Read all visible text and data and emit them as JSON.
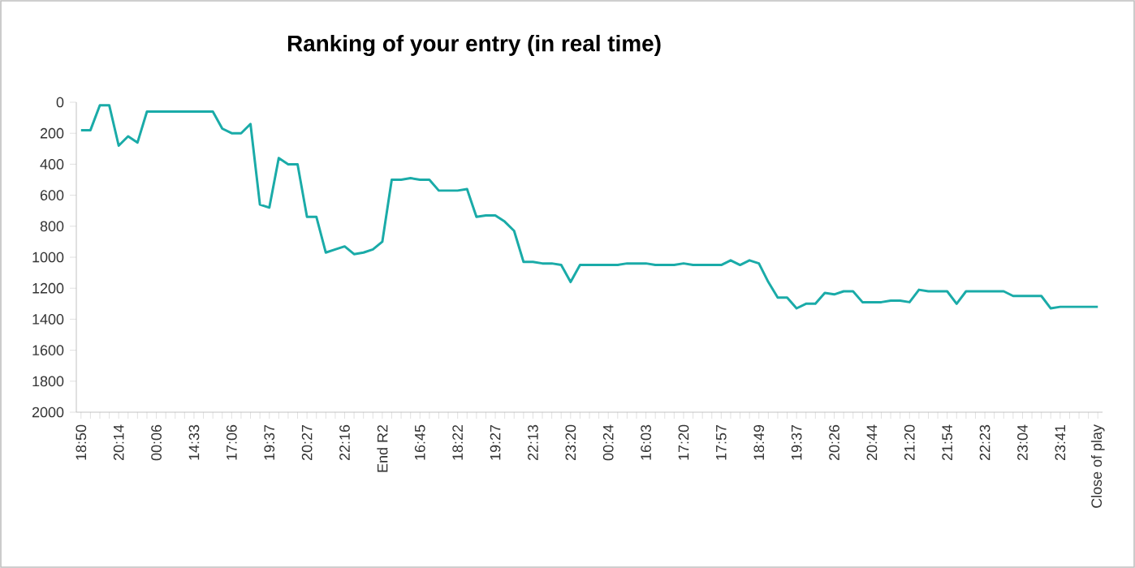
{
  "chart_data": {
    "type": "line",
    "title": "Ranking of your entry (in real time)",
    "categories": [
      "18:50",
      null,
      null,
      null,
      "20:14",
      null,
      null,
      null,
      "00:06",
      null,
      null,
      null,
      "14:33",
      null,
      null,
      null,
      "17:06",
      null,
      null,
      null,
      "19:37",
      null,
      null,
      null,
      "20:27",
      null,
      null,
      null,
      "22:16",
      null,
      null,
      null,
      "End R2",
      null,
      null,
      null,
      "16:45",
      null,
      null,
      null,
      "18:22",
      null,
      null,
      null,
      "19:27",
      null,
      null,
      null,
      "22:13",
      null,
      null,
      null,
      "23:20",
      null,
      null,
      null,
      "00:24",
      null,
      null,
      null,
      "16:03",
      null,
      null,
      null,
      "17:20",
      null,
      null,
      null,
      "17:57",
      null,
      null,
      null,
      "18:49",
      null,
      null,
      null,
      "19:37",
      null,
      null,
      null,
      "20:26",
      null,
      null,
      null,
      "20:44",
      null,
      null,
      null,
      "21:20",
      null,
      null,
      null,
      "21:54",
      null,
      null,
      null,
      "22:23",
      null,
      null,
      null,
      "23:04",
      null,
      null,
      null,
      "23:41",
      null,
      null,
      null,
      "Close of play"
    ],
    "series": [
      {
        "color": "#1aaba8",
        "values": [
          180,
          180,
          20,
          20,
          280,
          220,
          260,
          60,
          60,
          60,
          60,
          60,
          60,
          60,
          60,
          170,
          200,
          200,
          140,
          660,
          680,
          360,
          400,
          400,
          740,
          740,
          970,
          950,
          930,
          980,
          970,
          950,
          900,
          500,
          500,
          490,
          500,
          500,
          570,
          570,
          570,
          560,
          740,
          730,
          730,
          770,
          830,
          1030,
          1030,
          1040,
          1040,
          1050,
          1160,
          1050,
          1050,
          1050,
          1050,
          1050,
          1040,
          1040,
          1040,
          1050,
          1050,
          1050,
          1040,
          1050,
          1050,
          1050,
          1050,
          1020,
          1050,
          1020,
          1040,
          1160,
          1260,
          1260,
          1330,
          1300,
          1300,
          1230,
          1240,
          1220,
          1220,
          1290,
          1290,
          1290,
          1280,
          1280,
          1290,
          1210,
          1220,
          1220,
          1220,
          1300,
          1220,
          1220,
          1220,
          1220,
          1220,
          1250,
          1250,
          1250,
          1250,
          1330,
          1320,
          1320,
          1320,
          1320,
          1320
        ]
      }
    ],
    "ylim": [
      2000,
      0
    ],
    "yticks": [
      0,
      200,
      400,
      600,
      800,
      1000,
      1200,
      1400,
      1600,
      1800,
      2000
    ]
  }
}
